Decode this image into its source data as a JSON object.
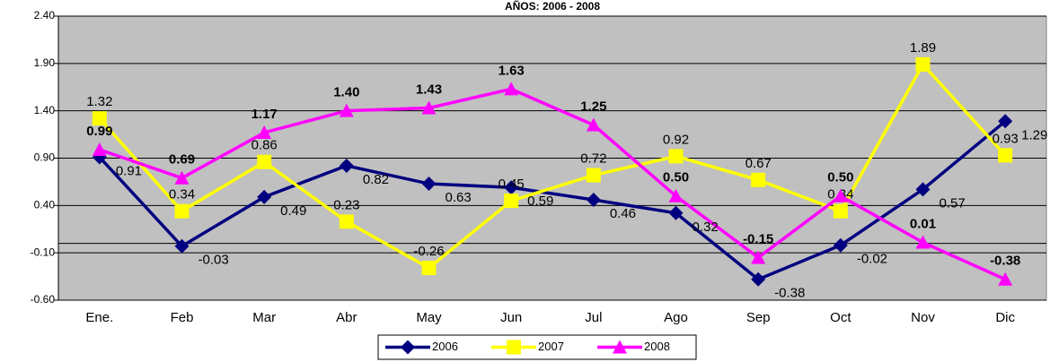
{
  "chart_data": {
    "type": "line",
    "title": "AÑOS: 2006 - 2008",
    "categories": [
      "Ene.",
      "Feb",
      "Mar",
      "Abr",
      "May",
      "Jun",
      "Jul",
      "Ago",
      "Sep",
      "Oct",
      "Nov",
      "Dic"
    ],
    "ylim": [
      -0.6,
      2.4
    ],
    "yticks": [
      {
        "value": -0.6,
        "label": "-0.60"
      },
      {
        "value": -0.1,
        "label": "-0.10"
      },
      {
        "value": 0.4,
        "label": "0.40"
      },
      {
        "value": 0.9,
        "label": "0.90"
      },
      {
        "value": 1.4,
        "label": "1.40"
      },
      {
        "value": 1.9,
        "label": "1.90"
      },
      {
        "value": 2.4,
        "label": "2.40"
      }
    ],
    "grid": true,
    "legend": "bottom",
    "series": [
      {
        "name": "2006",
        "color": "#000080",
        "marker": "diamond",
        "values": [
          0.91,
          -0.03,
          0.49,
          0.82,
          0.63,
          0.59,
          0.46,
          0.32,
          -0.38,
          -0.02,
          0.57,
          1.29
        ],
        "value_labels": [
          "0.91",
          "-0.03",
          "0.49",
          "0.82",
          "0.63",
          "0.59",
          "0.46",
          "0.32",
          "-0.38",
          "-0.02",
          "0.57",
          "1.29"
        ]
      },
      {
        "name": "2007",
        "color": "#FFFF00",
        "marker": "square",
        "values": [
          1.32,
          0.34,
          0.86,
          0.23,
          -0.26,
          0.45,
          0.72,
          0.92,
          0.67,
          0.34,
          1.89,
          0.93
        ],
        "value_labels": [
          "1.32",
          "0.34",
          "0.86",
          "0.23",
          "-0.26",
          "0.45",
          "0.72",
          "0.92",
          "0.67",
          "0.34",
          "1.89",
          "0.93"
        ]
      },
      {
        "name": "2008",
        "color": "#FF00FF",
        "marker": "triangle",
        "values": [
          0.99,
          0.69,
          1.17,
          1.4,
          1.43,
          1.63,
          1.25,
          0.5,
          -0.15,
          0.5,
          0.01,
          -0.38
        ],
        "value_labels": [
          "0.99",
          "0.69",
          "1.17",
          "1.40",
          "1.43",
          "1.63",
          "1.25",
          "0.50",
          "-0.15",
          "0.50",
          "0.01",
          "-0.38"
        ]
      }
    ]
  }
}
